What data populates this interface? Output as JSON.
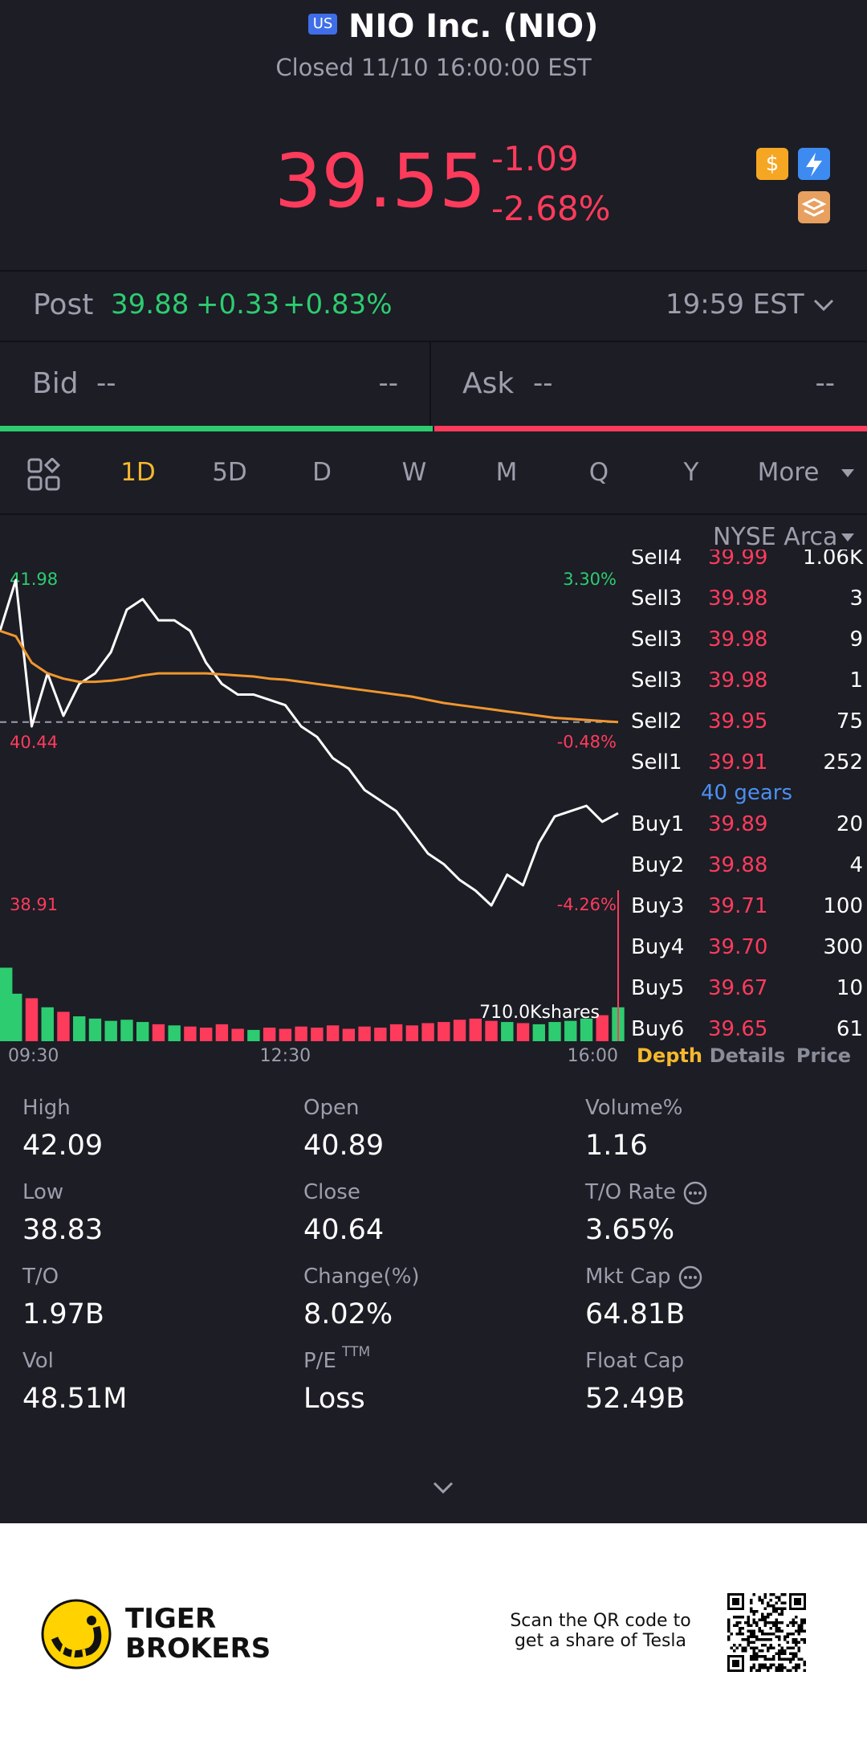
{
  "header": {
    "market_badge": "US",
    "title": "NIO Inc. (NIO)",
    "status": "Closed 11/10 16:00:00 EST"
  },
  "quote": {
    "price": "39.55",
    "change": "-1.09",
    "change_percent": "-2.68%"
  },
  "post_market": {
    "label": "Post",
    "price": "39.88",
    "change": "+0.33",
    "change_percent": "+0.83%",
    "time": "19:59 EST"
  },
  "bid": {
    "label": "Bid",
    "price": "--",
    "size": "--"
  },
  "ask": {
    "label": "Ask",
    "price": "--",
    "size": "--"
  },
  "period_tabs": {
    "items": [
      "1D",
      "5D",
      "D",
      "W",
      "M",
      "Q",
      "Y",
      "More"
    ],
    "active": 0
  },
  "exchange": "NYSE Arca",
  "chart": {
    "type": "line",
    "x": [
      "09:30",
      null,
      null,
      null,
      null,
      null,
      null,
      null,
      null,
      null,
      null,
      null,
      null,
      null,
      null,
      null,
      null,
      null,
      "12:30",
      null,
      null,
      null,
      null,
      null,
      null,
      null,
      null,
      null,
      null,
      null,
      null,
      null,
      null,
      null,
      null,
      null,
      null,
      null,
      null,
      "16:00"
    ],
    "series": [
      {
        "color": "#ffffff",
        "values": [
          41.5,
          41.98,
          40.6,
          41.1,
          40.7,
          41.0,
          41.1,
          41.3,
          41.7,
          41.8,
          41.6,
          41.6,
          41.5,
          41.2,
          41.0,
          40.9,
          40.9,
          40.85,
          40.8,
          40.6,
          40.5,
          40.3,
          40.2,
          40.0,
          39.9,
          39.8,
          39.6,
          39.4,
          39.3,
          39.15,
          39.05,
          38.91,
          39.2,
          39.1,
          39.5,
          39.75,
          39.8,
          39.85,
          39.7,
          39.78
        ]
      },
      {
        "color": "#f0962e",
        "values": [
          41.5,
          41.45,
          41.2,
          41.1,
          41.05,
          41.02,
          41.02,
          41.03,
          41.05,
          41.08,
          41.1,
          41.1,
          41.1,
          41.1,
          41.09,
          41.08,
          41.07,
          41.05,
          41.04,
          41.02,
          41.0,
          40.98,
          40.96,
          40.94,
          40.92,
          40.9,
          40.88,
          40.85,
          40.82,
          40.8,
          40.78,
          40.76,
          40.74,
          40.72,
          40.7,
          40.68,
          40.67,
          40.66,
          40.65,
          40.64
        ]
      }
    ],
    "ylim": [
      38.91,
      41.98
    ],
    "yticks": [
      41.98,
      40.44,
      38.91
    ],
    "y2lim": [
      -4.26,
      3.3
    ],
    "y2ticks": [
      {
        "value": 3.3,
        "label": "3.30%"
      },
      {
        "value": -0.48,
        "label": "-0.48%"
      },
      {
        "value": -4.26,
        "label": "-4.26%"
      }
    ],
    "reference": 40.64,
    "volume": {
      "values": [
        650,
        420,
        380,
        300,
        260,
        220,
        200,
        180,
        190,
        170,
        150,
        140,
        130,
        120,
        150,
        110,
        100,
        120,
        110,
        130,
        120,
        140,
        110,
        130,
        120,
        150,
        140,
        160,
        170,
        190,
        200,
        180,
        170,
        160,
        150,
        170,
        180,
        200,
        230,
        300
      ],
      "ylim": [
        0,
        710
      ],
      "up_color": "#2dcc70",
      "down_color": "#ff3b5c"
    },
    "volume_label": "710.0Kshares"
  },
  "order_book": {
    "sell": [
      {
        "side": "Sell4",
        "price": "39.99",
        "size": "1.06K"
      },
      {
        "side": "Sell3",
        "price": "39.98",
        "size": "3"
      },
      {
        "side": "Sell3",
        "price": "39.98",
        "size": "9"
      },
      {
        "side": "Sell3",
        "price": "39.98",
        "size": "1"
      },
      {
        "side": "Sell2",
        "price": "39.95",
        "size": "75"
      },
      {
        "side": "Sell1",
        "price": "39.91",
        "size": "252"
      }
    ],
    "gears": "40 gears",
    "buy": [
      {
        "side": "Buy1",
        "price": "39.89",
        "size": "20"
      },
      {
        "side": "Buy2",
        "price": "39.88",
        "size": "4"
      },
      {
        "side": "Buy3",
        "price": "39.71",
        "size": "100"
      },
      {
        "side": "Buy4",
        "price": "39.70",
        "size": "300"
      },
      {
        "side": "Buy5",
        "price": "39.67",
        "size": "10"
      },
      {
        "side": "Buy6",
        "price": "39.65",
        "size": "61"
      }
    ]
  },
  "book_tabs": {
    "items": [
      "Depth",
      "Details",
      "Price"
    ],
    "active": 0
  },
  "stats": [
    [
      {
        "label": "High",
        "value": "42.09"
      },
      {
        "label": "Open",
        "value": "40.89"
      },
      {
        "label": "Volume%",
        "value": "1.16"
      }
    ],
    [
      {
        "label": "Low",
        "value": "38.83"
      },
      {
        "label": "Close",
        "value": "40.64"
      },
      {
        "label": "T/O Rate",
        "value": "3.65%",
        "info": true
      }
    ],
    [
      {
        "label": "T/O",
        "value": "1.97B"
      },
      {
        "label": "Change(%)",
        "value": "8.02%"
      },
      {
        "label": "Mkt Cap",
        "value": "64.81B",
        "info": true
      }
    ],
    [
      {
        "label": "Vol",
        "value": "48.51M"
      },
      {
        "label": "P/E",
        "superscript": "TTM",
        "value": "Loss"
      },
      {
        "label": "Float Cap",
        "value": "52.49B"
      }
    ]
  ],
  "footer": {
    "brand_line1": "TIGER",
    "brand_line2": "BROKERS",
    "promo_line1": "Scan the QR code to",
    "promo_line2": "get a share of Tesla"
  }
}
